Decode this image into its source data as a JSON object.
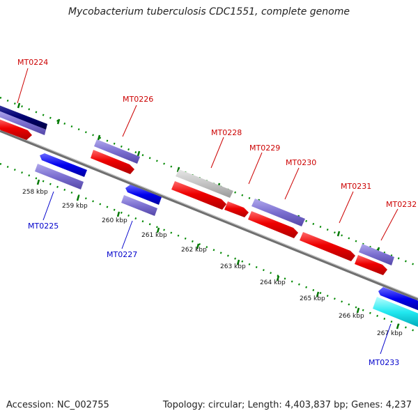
{
  "title": "Mycobacterium tuberculosis CDC1551, complete genome",
  "accession": "Accession: NC_002755",
  "summary": "Topology: circular; Length: 4,403,837 bp; Genes: 4,237",
  "colors": {
    "forward_label": "#cc0000",
    "reverse_label": "#0000cc",
    "backbone": "#808080",
    "ticks": "#008800"
  },
  "tick_labels": [
    "258 kbp",
    "259 kbp",
    "260 kbp",
    "261 kbp",
    "262 kbp",
    "263 kbp",
    "264 kbp",
    "265 kbp",
    "266 kbp",
    "267 kbp"
  ],
  "genes_forward": [
    "MT0224",
    "MT0226",
    "MT0228",
    "MT0229",
    "MT0230",
    "MT0231",
    "MT0232"
  ],
  "genes_reverse": [
    "MT0225",
    "MT0227",
    "MT0233"
  ]
}
